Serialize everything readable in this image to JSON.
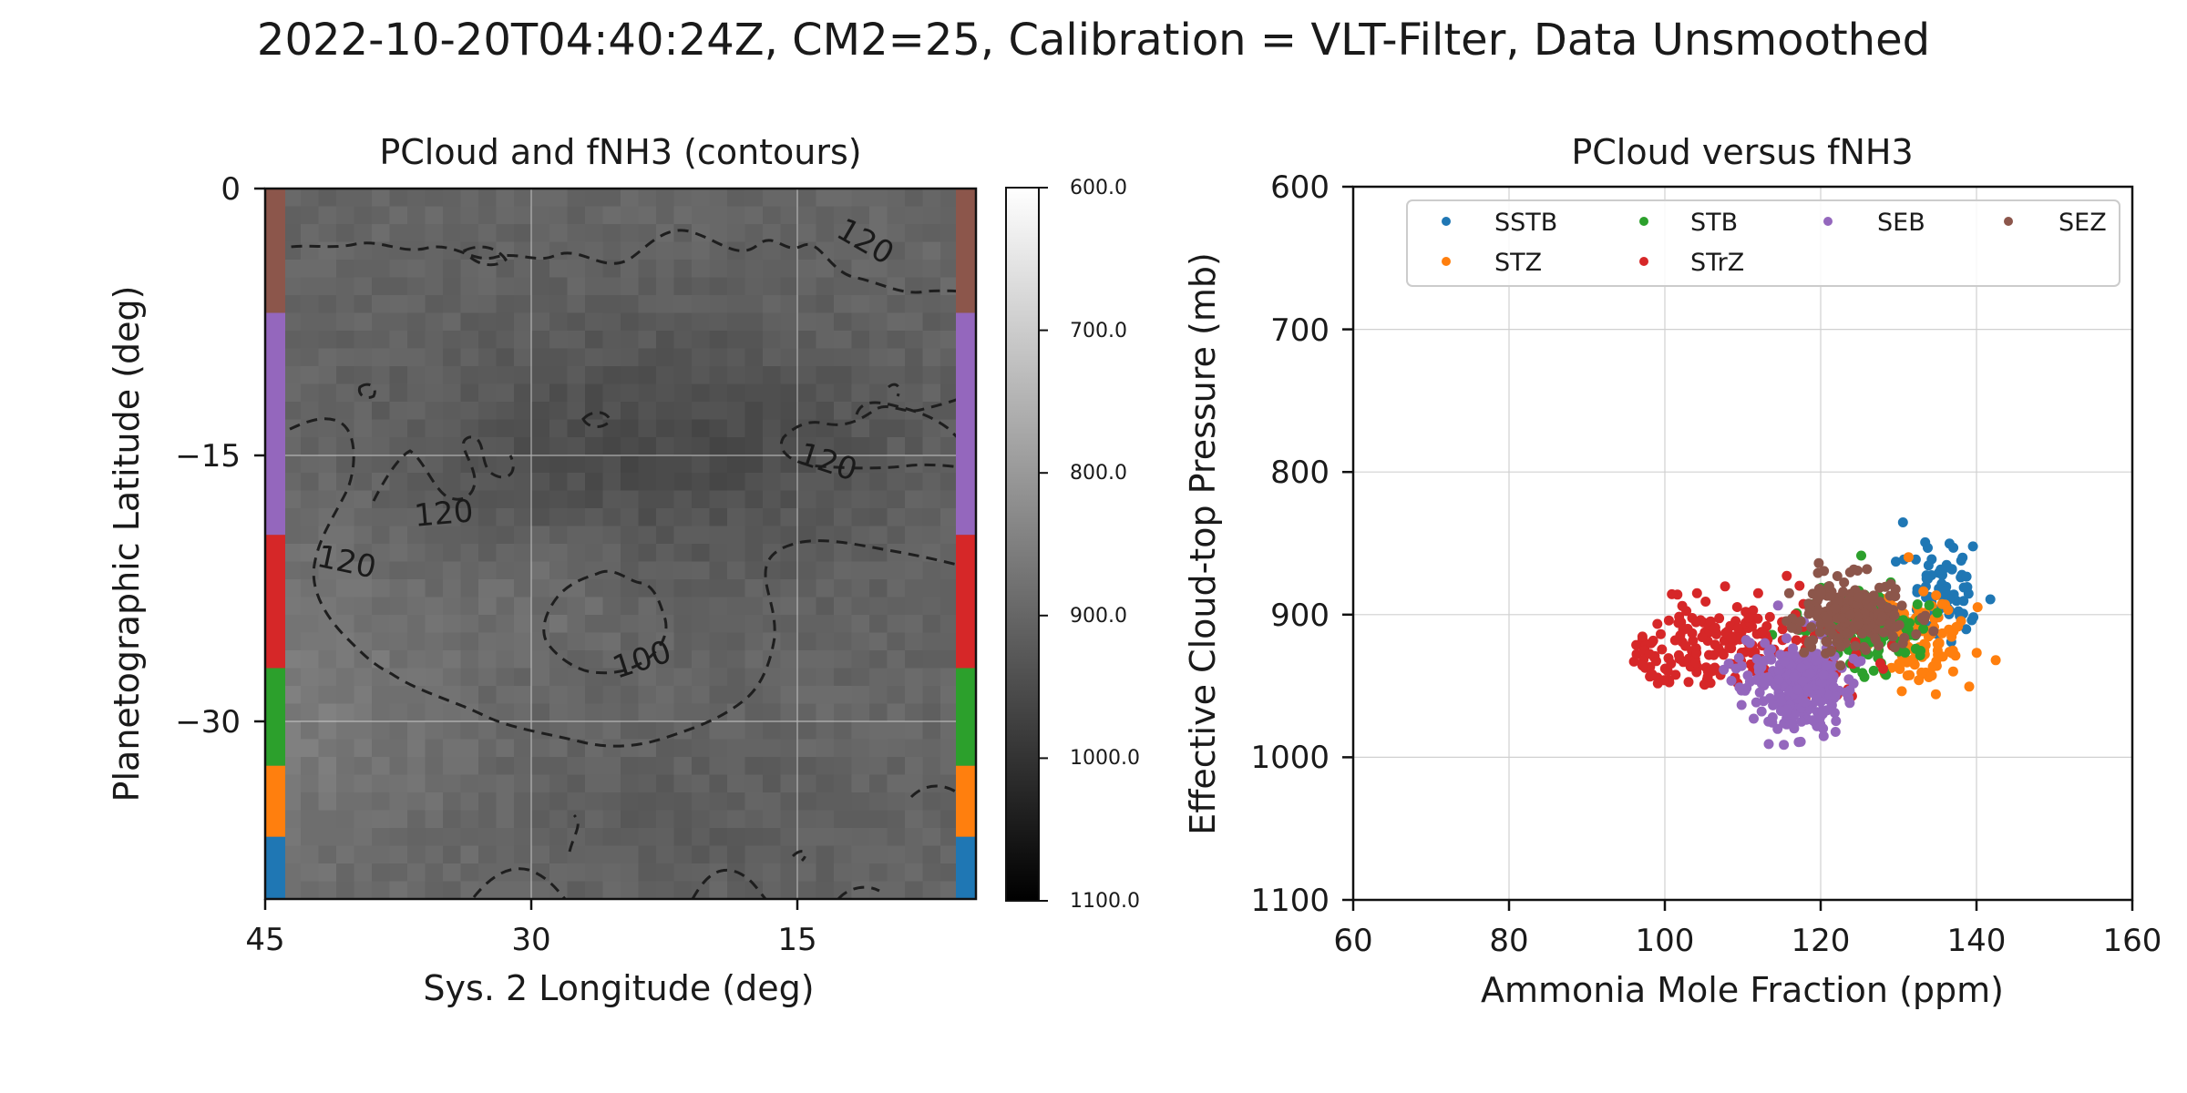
{
  "figure": {
    "suptitle": "2022-10-20T04:40:24Z, CM2=25, Calibration = VLT-Filter, Data Unsmoothed"
  },
  "left_panel": {
    "title": "PCloud and fNH3 (contours)",
    "xlabel": "Sys. 2 Longitude (deg)",
    "ylabel": "Planetographic Latitude (deg)",
    "xticks": [
      "45",
      "30",
      "15"
    ],
    "yticks": [
      "0",
      "−15",
      "−30"
    ],
    "contour_labels": [
      "120",
      "120",
      "120",
      "120",
      "100"
    ],
    "colorbar": {
      "ticks": [
        "600.0",
        "700.0",
        "800.0",
        "900.0",
        "1000.0",
        "1100.0"
      ],
      "range": [
        600,
        1100
      ],
      "colormap": "gray (low pressure white, high pressure black)"
    },
    "band_strip": [
      "SEZ",
      "SEB",
      "STrZ",
      "STB",
      "STZ",
      "SSTB"
    ]
  },
  "right_panel": {
    "title": "PCloud versus fNH3",
    "xlabel": "Ammonia Mole Fraction (ppm)",
    "ylabel": "Effective Cloud-top Pressure (mb)",
    "xticks": [
      "60",
      "80",
      "100",
      "120",
      "140",
      "160"
    ],
    "yticks": [
      "600",
      "700",
      "800",
      "900",
      "1000",
      "1100"
    ]
  },
  "chart_data": [
    {
      "type": "heatmap",
      "title": "PCloud and fNH3 (contours)",
      "xlabel": "Sys. 2 Longitude (deg)",
      "ylabel": "Planetographic Latitude (deg)",
      "xlim": [
        45,
        5
      ],
      "ylim": [
        -40,
        0
      ],
      "value_range": [
        600,
        1100
      ],
      "value_label": "Effective cloud-top pressure (mb)",
      "contour_levels": [
        100,
        120
      ],
      "grid": true,
      "latitude_bands": [
        {
          "name": "SEZ",
          "lat_range": [
            -7,
            0
          ],
          "color": "#8c564b"
        },
        {
          "name": "SEB",
          "lat_range": [
            -19.5,
            -7
          ],
          "color": "#9467bd"
        },
        {
          "name": "STrZ",
          "lat_range": [
            -27,
            -19.5
          ],
          "color": "#d62728"
        },
        {
          "name": "STB",
          "lat_range": [
            -32.5,
            -27
          ],
          "color": "#2ca02c"
        },
        {
          "name": "STZ",
          "lat_range": [
            -36.5,
            -32.5
          ],
          "color": "#ff7f0e"
        },
        {
          "name": "SSTB",
          "lat_range": [
            -40,
            -36.5
          ],
          "color": "#1f77b4"
        }
      ]
    },
    {
      "type": "scatter",
      "title": "PCloud versus fNH3",
      "xlabel": "Ammonia Mole Fraction (ppm)",
      "ylabel": "Effective Cloud-top Pressure (mb)",
      "xlim": [
        60,
        160
      ],
      "ylim": [
        1100,
        600
      ],
      "grid": true,
      "legend_position": "top-right",
      "series": [
        {
          "name": "SSTB",
          "color": "#1f77b4",
          "center": [
            136,
            878
          ],
          "spread": [
            4,
            28
          ],
          "count": 70
        },
        {
          "name": "STZ",
          "color": "#ff7f0e",
          "center": [
            133,
            920
          ],
          "spread": [
            5,
            25
          ],
          "count": 110
        },
        {
          "name": "STB",
          "color": "#2ca02c",
          "center": [
            126,
            910
          ],
          "spread": [
            7,
            30
          ],
          "count": 120
        },
        {
          "name": "STrZ",
          "color": "#d62728",
          "center": [
            112,
            920
          ],
          "spread": [
            12,
            30
          ],
          "count": 230
        },
        {
          "name": "SEB",
          "color": "#9467bd",
          "center": [
            117,
            950
          ],
          "spread": [
            5,
            25
          ],
          "count": 300
        },
        {
          "name": "SEZ",
          "color": "#8c564b",
          "center": [
            124,
            900
          ],
          "spread": [
            6,
            20
          ],
          "count": 220
        }
      ]
    }
  ]
}
